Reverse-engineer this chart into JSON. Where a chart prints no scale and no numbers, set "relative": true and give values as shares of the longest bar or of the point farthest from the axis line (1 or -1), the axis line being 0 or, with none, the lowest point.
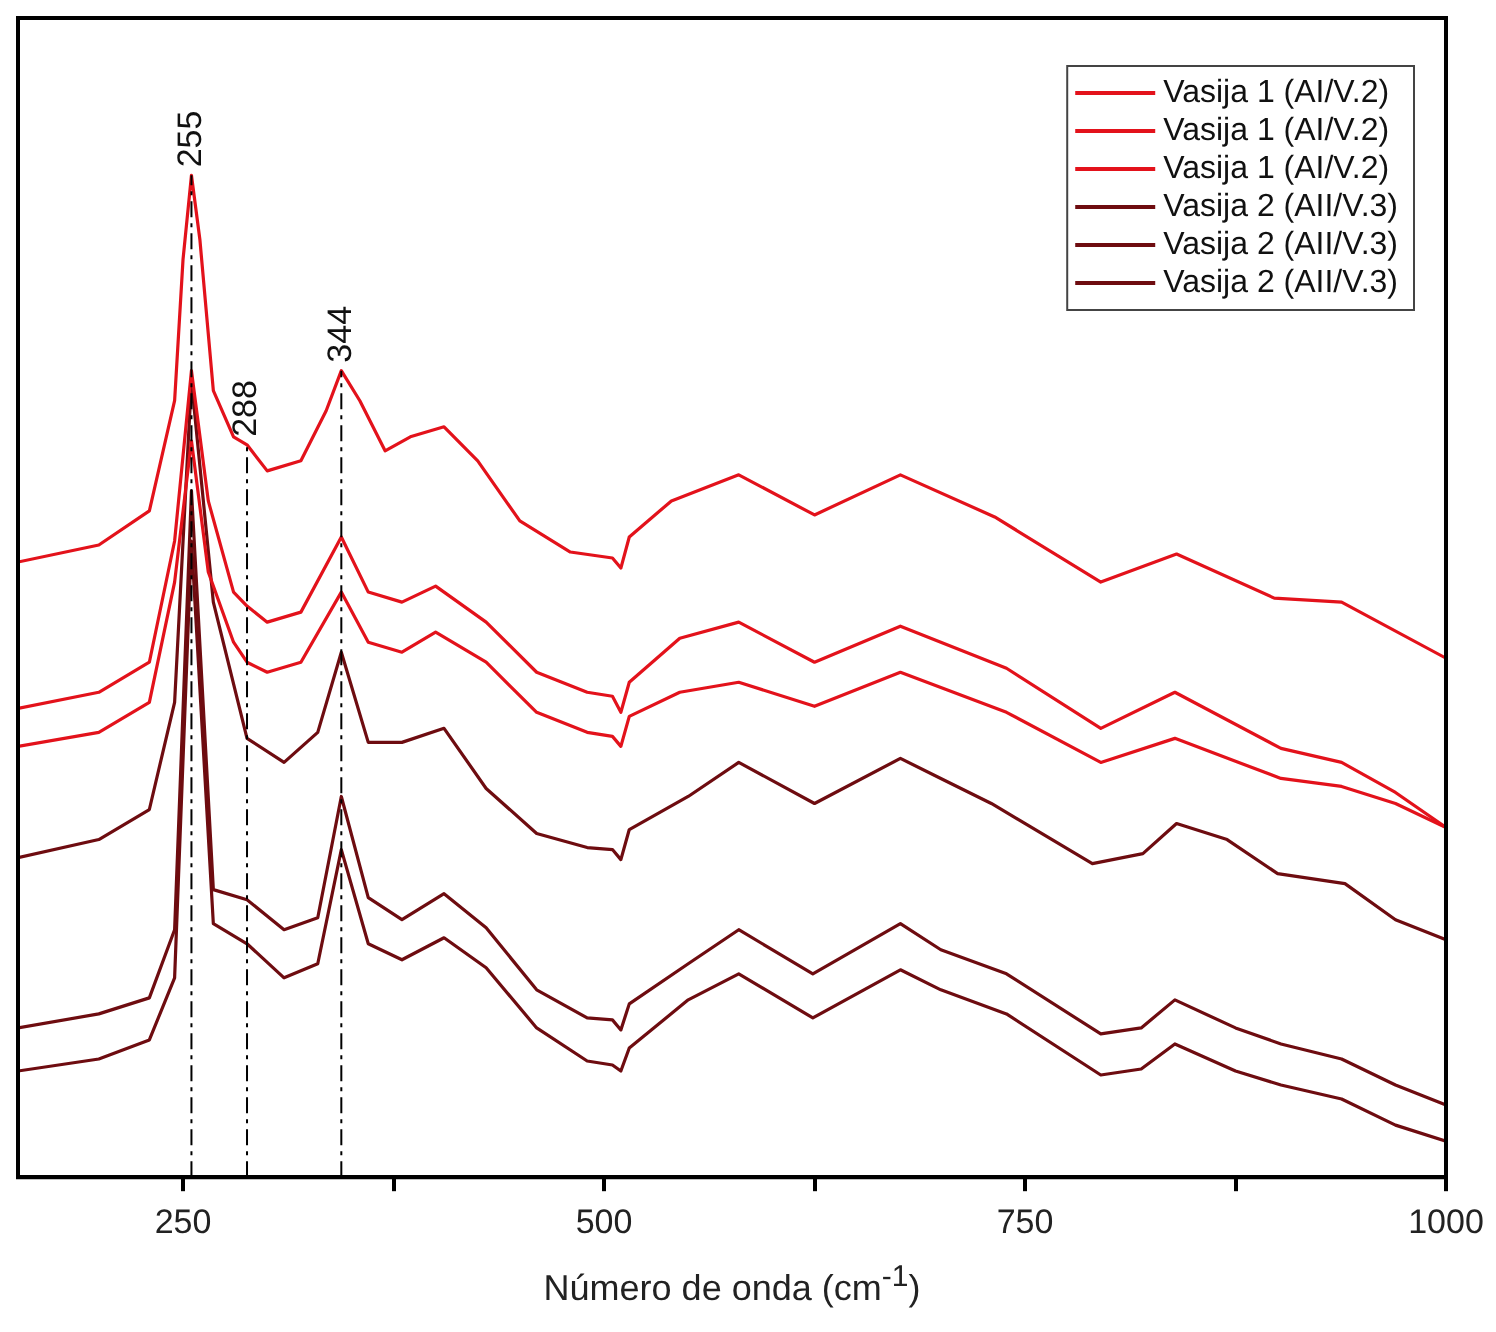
{
  "chart_data": {
    "type": "line",
    "relative": true,
    "xlabel": "Número de onda (cm$^{-1}$)",
    "xlim": [
      152,
      1000
    ],
    "xticks": [
      250,
      {
        "value": 375,
        "label": null
      },
      500,
      {
        "value": 625,
        "label": null
      },
      750,
      {
        "value": 875,
        "label": null
      },
      1000
    ],
    "tick_labels": "x",
    "legend": "top right",
    "marker": "none",
    "line_style": "solid",
    "ref_lines": [
      {
        "axis": "x",
        "value": 255,
        "label": "255",
        "color": "#000000",
        "line_style": "dashdot"
      },
      {
        "axis": "x",
        "value": 288,
        "label": "288",
        "color": "#000000",
        "line_style": "dashdot"
      },
      {
        "axis": "x",
        "value": 344,
        "label": "344",
        "color": "#000000",
        "line_style": "dashdot"
      }
    ],
    "series": [
      {
        "name": "Vasija 1 (AI/V.2)",
        "color": "#e3121b",
        "x": [
          152,
          200,
          230,
          245,
          250,
          255,
          260,
          268,
          280,
          288,
          300,
          320,
          335,
          344,
          355,
          370,
          385,
          405,
          425,
          450,
          480,
          505,
          510,
          515,
          540,
          580,
          625,
          676,
          732,
          795,
          840,
          898,
          938,
          1000
        ],
        "values": [
          0.614,
          0.631,
          0.665,
          0.775,
          0.916,
          1,
          0.936,
          0.785,
          0.739,
          0.731,
          0.705,
          0.715,
          0.765,
          0.805,
          0.775,
          0.725,
          0.739,
          0.749,
          0.715,
          0.655,
          0.624,
          0.618,
          0.608,
          0.639,
          0.675,
          0.701,
          0.661,
          0.701,
          0.659,
          0.594,
          0.622,
          0.578,
          0.574,
          0.518
        ]
      },
      {
        "name": "Vasija 1 (AI/V.2)",
        "color": "#e3121b",
        "x": [
          152,
          200,
          230,
          245,
          255,
          265,
          280,
          288,
          300,
          320,
          344,
          360,
          380,
          400,
          430,
          460,
          490,
          505,
          510,
          515,
          545,
          580,
          625,
          676,
          739,
          795,
          839,
          902,
          938,
          970,
          1000
        ],
        "values": [
          0.468,
          0.484,
          0.514,
          0.635,
          0.805,
          0.675,
          0.584,
          0.57,
          0.554,
          0.564,
          0.639,
          0.584,
          0.574,
          0.59,
          0.554,
          0.504,
          0.484,
          0.48,
          0.464,
          0.494,
          0.538,
          0.554,
          0.514,
          0.55,
          0.508,
          0.448,
          0.484,
          0.428,
          0.414,
          0.384,
          0.349
        ]
      },
      {
        "name": "Vasija 1 (AI/V.2)",
        "color": "#e3121b",
        "x": [
          152,
          200,
          230,
          245,
          255,
          265,
          280,
          288,
          300,
          320,
          344,
          360,
          380,
          400,
          430,
          460,
          490,
          505,
          510,
          515,
          545,
          580,
          625,
          676,
          739,
          795,
          839,
          902,
          938,
          970,
          1000
        ],
        "values": [
          0.43,
          0.444,
          0.474,
          0.594,
          0.735,
          0.604,
          0.534,
          0.514,
          0.504,
          0.514,
          0.584,
          0.534,
          0.524,
          0.544,
          0.514,
          0.464,
          0.444,
          0.44,
          0.43,
          0.46,
          0.484,
          0.494,
          0.47,
          0.504,
          0.464,
          0.414,
          0.438,
          0.398,
          0.39,
          0.373,
          0.349
        ]
      },
      {
        "name": "Vasija 2 (AII/V.3)",
        "color": "#6e0c10",
        "x": [
          152,
          200,
          230,
          245,
          255,
          268,
          288,
          310,
          330,
          344,
          360,
          380,
          405,
          430,
          460,
          490,
          505,
          510,
          515,
          550,
          580,
          625,
          676,
          700,
          730,
          790,
          820,
          840,
          870,
          900,
          940,
          970,
          1000
        ],
        "values": [
          0.319,
          0.337,
          0.367,
          0.474,
          0.795,
          0.574,
          0.438,
          0.414,
          0.444,
          0.524,
          0.434,
          0.434,
          0.448,
          0.388,
          0.343,
          0.329,
          0.327,
          0.317,
          0.347,
          0.38,
          0.414,
          0.373,
          0.418,
          0.398,
          0.373,
          0.313,
          0.323,
          0.353,
          0.337,
          0.303,
          0.293,
          0.257,
          0.237
        ]
      },
      {
        "name": "Vasija 2 (AII/V.3)",
        "color": "#6e0c10",
        "x": [
          152,
          200,
          230,
          245,
          255,
          268,
          288,
          310,
          330,
          344,
          360,
          380,
          405,
          430,
          460,
          490,
          505,
          510,
          515,
          550,
          580,
          624,
          676,
          700,
          739,
          795,
          819,
          839,
          875,
          902,
          938,
          970,
          1000
        ],
        "values": [
          0.149,
          0.163,
          0.179,
          0.247,
          0.685,
          0.287,
          0.277,
          0.247,
          0.259,
          0.38,
          0.279,
          0.257,
          0.283,
          0.249,
          0.187,
          0.159,
          0.157,
          0.147,
          0.173,
          0.213,
          0.247,
          0.203,
          0.253,
          0.227,
          0.203,
          0.143,
          0.149,
          0.177,
          0.149,
          0.133,
          0.118,
          0.092,
          0.072
        ]
      },
      {
        "name": "Vasija 2 (AII/V.3)",
        "color": "#6e0c10",
        "x": [
          152,
          200,
          230,
          245,
          255,
          268,
          288,
          310,
          330,
          344,
          360,
          380,
          405,
          430,
          460,
          490,
          505,
          510,
          515,
          550,
          580,
          624,
          676,
          700,
          739,
          795,
          819,
          839,
          875,
          902,
          938,
          970,
          1000
        ],
        "values": [
          0.106,
          0.118,
          0.137,
          0.199,
          0.635,
          0.253,
          0.233,
          0.199,
          0.213,
          0.327,
          0.233,
          0.217,
          0.239,
          0.209,
          0.149,
          0.116,
          0.112,
          0.106,
          0.129,
          0.177,
          0.203,
          0.159,
          0.207,
          0.187,
          0.163,
          0.102,
          0.108,
          0.133,
          0.106,
          0.092,
          0.078,
          0.052,
          0.036
        ]
      }
    ]
  }
}
